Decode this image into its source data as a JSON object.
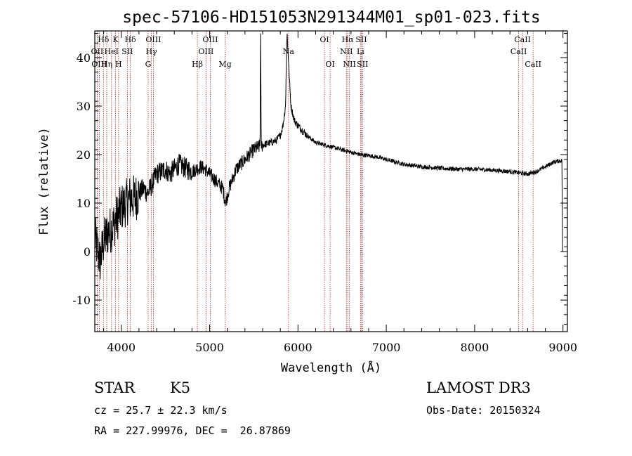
{
  "chart_data": {
    "type": "line",
    "title": "spec-57106-HD151053N291344M01_sp01-023.fits",
    "xlabel": "Wavelength (Å)",
    "ylabel": "Flux (relative)",
    "xlim": [
      3700,
      9050
    ],
    "ylim": [
      -16.5,
      45.5
    ],
    "xticks": [
      4000,
      5000,
      6000,
      7000,
      8000,
      9000
    ],
    "yticks": [
      -10,
      0,
      10,
      20,
      30,
      40
    ],
    "line_color": "#000000",
    "marker_color": "#b03030",
    "spectral_lines": [
      {
        "name": "Hδ",
        "wavelength": 3798,
        "row": 0
      },
      {
        "name": "OII",
        "wavelength": 3727,
        "row": 1
      },
      {
        "name": "OIII",
        "wavelength": 3750,
        "row": 2
      },
      {
        "name": "K",
        "wavelength": 3934,
        "row": 0
      },
      {
        "name": "HeI",
        "wavelength": 3889,
        "row": 1
      },
      {
        "name": "Hη",
        "wavelength": 3835,
        "row": 2
      },
      {
        "name": "SII",
        "wavelength": 4069,
        "row": 1
      },
      {
        "name": "H",
        "wavelength": 3969,
        "row": 2
      },
      {
        "name": "Hδ",
        "wavelength": 4102,
        "row": 0
      },
      {
        "name": "OIII",
        "wavelength": 4363,
        "row": 0
      },
      {
        "name": "Hγ",
        "wavelength": 4341,
        "row": 1
      },
      {
        "name": "G",
        "wavelength": 4304,
        "row": 2
      },
      {
        "name": "Hβ",
        "wavelength": 4861,
        "row": 2
      },
      {
        "name": "OIII",
        "wavelength": 5007,
        "row": 0
      },
      {
        "name": "OIII",
        "wavelength": 4959,
        "row": 1
      },
      {
        "name": "Mg",
        "wavelength": 5175,
        "row": 2
      },
      {
        "name": "Na",
        "wavelength": 5893,
        "row": 1
      },
      {
        "name": "OI",
        "wavelength": 6300,
        "row": 0
      },
      {
        "name": "OI",
        "wavelength": 6364,
        "row": 2
      },
      {
        "name": "Hα",
        "wavelength": 6563,
        "row": 0
      },
      {
        "name": "NII",
        "wavelength": 6548,
        "row": 1
      },
      {
        "name": "NII",
        "wavelength": 6583,
        "row": 2
      },
      {
        "name": "SII",
        "wavelength": 6717,
        "row": 0
      },
      {
        "name": "Li",
        "wavelength": 6708,
        "row": 1
      },
      {
        "name": "SII",
        "wavelength": 6731,
        "row": 2
      },
      {
        "name": "CaII",
        "wavelength": 8542,
        "row": 0
      },
      {
        "name": "CaII",
        "wavelength": 8498,
        "row": 1
      },
      {
        "name": "CaII",
        "wavelength": 8662,
        "row": 2
      }
    ],
    "continuum": [
      [
        3700,
        3
      ],
      [
        3760,
        -2
      ],
      [
        3800,
        2
      ],
      [
        3850,
        4
      ],
      [
        3900,
        5
      ],
      [
        3950,
        7
      ],
      [
        4000,
        9
      ],
      [
        4050,
        10
      ],
      [
        4100,
        11
      ],
      [
        4150,
        11
      ],
      [
        4200,
        12
      ],
      [
        4250,
        13
      ],
      [
        4300,
        12
      ],
      [
        4350,
        14
      ],
      [
        4400,
        16
      ],
      [
        4500,
        17
      ],
      [
        4550,
        16
      ],
      [
        4600,
        17
      ],
      [
        4650,
        18
      ],
      [
        4700,
        17.5
      ],
      [
        4750,
        17
      ],
      [
        4800,
        16.5
      ],
      [
        4850,
        17
      ],
      [
        4900,
        17.5
      ],
      [
        4950,
        17
      ],
      [
        5000,
        16
      ],
      [
        5050,
        15
      ],
      [
        5100,
        14
      ],
      [
        5150,
        13
      ],
      [
        5180,
        10
      ],
      [
        5220,
        13
      ],
      [
        5300,
        17
      ],
      [
        5400,
        19
      ],
      [
        5500,
        21
      ],
      [
        5600,
        22
      ],
      [
        5700,
        22.5
      ],
      [
        5760,
        23
      ],
      [
        5800,
        24
      ],
      [
        5830,
        26
      ],
      [
        5860,
        30
      ],
      [
        5890,
        40
      ],
      [
        5920,
        30
      ],
      [
        5960,
        27
      ],
      [
        6000,
        26
      ],
      [
        6100,
        24
      ],
      [
        6200,
        22.5
      ],
      [
        6300,
        22
      ],
      [
        6400,
        21.5
      ],
      [
        6500,
        21
      ],
      [
        6600,
        20.5
      ],
      [
        6700,
        20
      ],
      [
        6800,
        19.8
      ],
      [
        6900,
        19.5
      ],
      [
        7000,
        19
      ],
      [
        7100,
        18.5
      ],
      [
        7200,
        18
      ],
      [
        7400,
        17.5
      ],
      [
        7600,
        17.2
      ],
      [
        7800,
        17
      ],
      [
        8000,
        17
      ],
      [
        8200,
        16.8
      ],
      [
        8400,
        16.5
      ],
      [
        8600,
        16
      ],
      [
        8700,
        16.5
      ],
      [
        8800,
        17.5
      ],
      [
        8900,
        18.5
      ],
      [
        8990,
        18.8
      ]
    ],
    "features": [
      {
        "wavelength": 5577,
        "peak": 44.5,
        "width": 4
      },
      {
        "wavelength": 5875,
        "peak": 44.5,
        "width": 10
      }
    ]
  },
  "info": {
    "object_type": "STAR",
    "subclass": "K5",
    "survey": "LAMOST DR3",
    "redshift": "cz = 25.7 ± 22.3 km/s",
    "obs_date": "Obs-Date: 20150324",
    "coords": "RA = 227.99976, DEC =  26.87869"
  }
}
